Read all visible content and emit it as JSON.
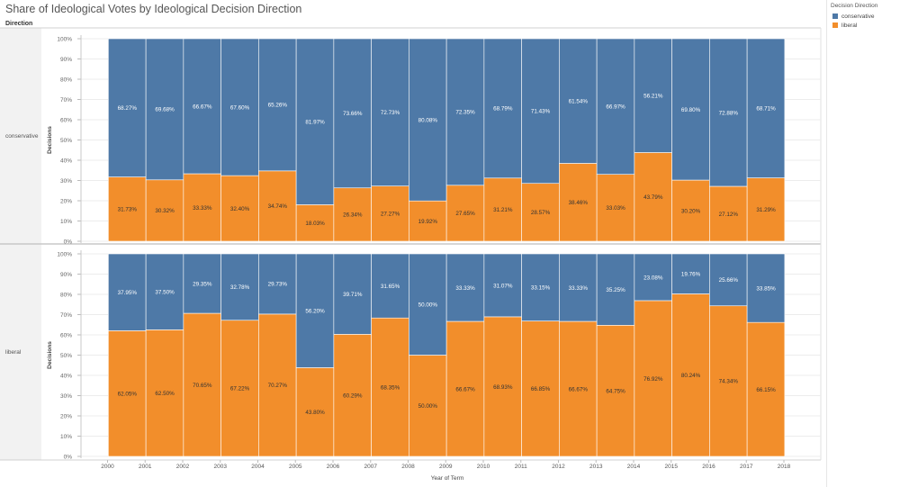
{
  "title": "Share of Ideological Votes by Ideological Decision Direction",
  "row_header_title": "Direction",
  "legend": {
    "title": "Decision Direction",
    "items": [
      {
        "label": "conservative",
        "color": "#4e79a7"
      },
      {
        "label": "liberal",
        "color": "#f28e2b"
      }
    ]
  },
  "chart_data": {
    "type": "bar",
    "stacked": true,
    "layout": "faceted-rows",
    "xlabel": "Year of Term",
    "ylabel": "Decisions",
    "ylim": [
      0,
      100
    ],
    "y_ticks": [
      "0%",
      "10%",
      "20%",
      "30%",
      "40%",
      "50%",
      "60%",
      "70%",
      "80%",
      "90%",
      "100%"
    ],
    "x_ticks": [
      "2000",
      "2001",
      "2002",
      "2003",
      "2004",
      "2005",
      "2006",
      "2007",
      "2008",
      "2009",
      "2010",
      "2011",
      "2012",
      "2013",
      "2014",
      "2015",
      "2016",
      "2017",
      "2018"
    ],
    "categories": [
      "2000",
      "2001",
      "2002",
      "2003",
      "2004",
      "2005",
      "2006",
      "2007",
      "2008",
      "2009",
      "2010",
      "2011",
      "2012",
      "2013",
      "2014",
      "2015",
      "2016",
      "2017"
    ],
    "grid": true,
    "legend_position": "top-right",
    "panels": [
      {
        "row_label": "conservative",
        "series": [
          {
            "name": "liberal",
            "color": "#f28e2b",
            "values": [
              31.73,
              30.32,
              33.33,
              32.4,
              34.74,
              18.03,
              26.34,
              27.27,
              19.92,
              27.65,
              31.21,
              28.57,
              38.46,
              33.03,
              43.79,
              30.2,
              27.12,
              31.29
            ],
            "labels": [
              "31.73%",
              "30.32%",
              "33.33%",
              "32.40%",
              "34.74%",
              "18.03%",
              "26.34%",
              "27.27%",
              "19.92%",
              "27.65%",
              "31.21%",
              "28.57%",
              "38.46%",
              "33.03%",
              "43.79%",
              "30.20%",
              "27.12%",
              "31.29%"
            ]
          },
          {
            "name": "conservative",
            "color": "#4e79a7",
            "values": [
              68.27,
              69.68,
              66.67,
              67.6,
              65.26,
              81.97,
              73.66,
              72.73,
              80.08,
              72.35,
              68.79,
              71.43,
              61.54,
              66.97,
              56.21,
              69.8,
              72.88,
              68.71
            ],
            "labels": [
              "68.27%",
              "69.68%",
              "66.67%",
              "67.60%",
              "65.26%",
              "81.97%",
              "73.66%",
              "72.73%",
              "80.08%",
              "72.35%",
              "68.79%",
              "71.43%",
              "61.54%",
              "66.97%",
              "56.21%",
              "69.80%",
              "72.88%",
              "68.71%"
            ]
          }
        ]
      },
      {
        "row_label": "liberal",
        "series": [
          {
            "name": "liberal",
            "color": "#f28e2b",
            "values": [
              62.05,
              62.5,
              70.65,
              67.22,
              70.27,
              43.8,
              60.29,
              68.35,
              50.0,
              66.67,
              68.93,
              66.85,
              66.67,
              64.75,
              76.92,
              80.24,
              74.34,
              66.15
            ],
            "labels": [
              "62.05%",
              "62.50%",
              "70.65%",
              "67.22%",
              "70.27%",
              "43.80%",
              "60.29%",
              "68.35%",
              "50.00%",
              "66.67%",
              "68.93%",
              "66.85%",
              "66.67%",
              "64.75%",
              "76.92%",
              "80.24%",
              "74.34%",
              "66.15%"
            ]
          },
          {
            "name": "conservative",
            "color": "#4e79a7",
            "values": [
              37.95,
              37.5,
              29.35,
              32.78,
              29.73,
              56.2,
              39.71,
              31.65,
              50.0,
              33.33,
              31.07,
              33.15,
              33.33,
              35.25,
              23.08,
              19.76,
              25.66,
              33.85
            ],
            "labels": [
              "37.95%",
              "37.50%",
              "29.35%",
              "32.78%",
              "29.73%",
              "56.20%",
              "39.71%",
              "31.65%",
              "50.00%",
              "33.33%",
              "31.07%",
              "33.15%",
              "33.33%",
              "35.25%",
              "23.08%",
              "19.76%",
              "25.66%",
              "33.85%"
            ]
          }
        ]
      }
    ]
  }
}
